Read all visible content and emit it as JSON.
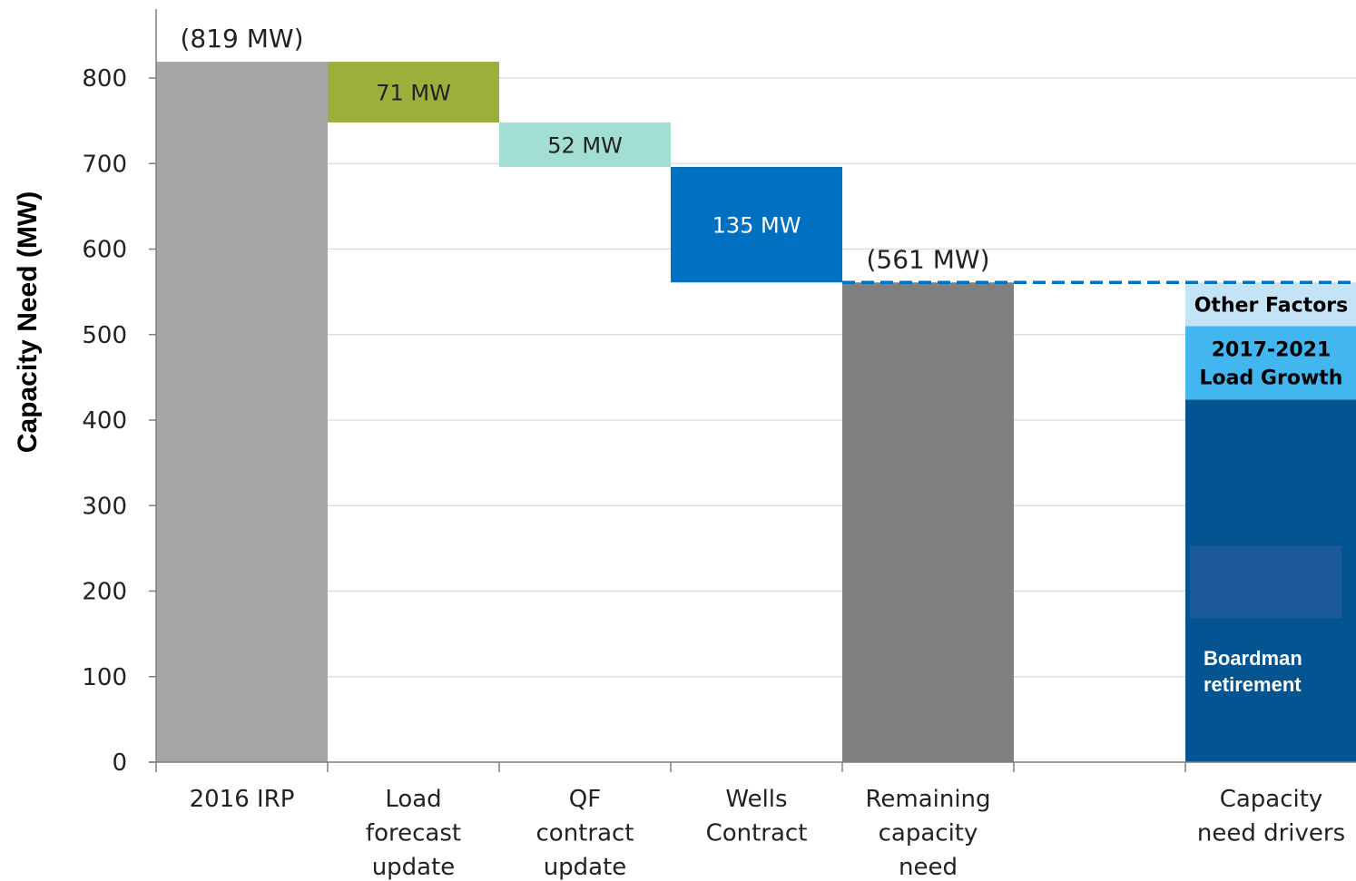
{
  "chart_data": {
    "type": "bar",
    "subtype": "waterfall",
    "title": "",
    "xlabel": "",
    "ylabel": "Capacity Need (MW)",
    "ylim": [
      0,
      850
    ],
    "yticks": [
      0,
      100,
      200,
      300,
      400,
      500,
      600,
      700,
      800
    ],
    "grid": true,
    "categories": [
      "2016 IRP",
      "Load forecast update",
      "QF contract update",
      "Wells Contract",
      "Remaining capacity need",
      "",
      "Capacity need drivers"
    ],
    "category_lines": [
      [
        "2016 IRP"
      ],
      [
        "Load",
        "forecast",
        "update"
      ],
      [
        "QF",
        "contract",
        "update"
      ],
      [
        "Wells",
        "Contract"
      ],
      [
        "Remaining",
        "capacity",
        "need"
      ],
      [],
      [
        "Capacity",
        "need drivers"
      ]
    ],
    "bars": [
      {
        "category_index": 0,
        "base": 0,
        "top": 819,
        "color": "#a6a6a6",
        "label": "(819 MW)",
        "label_position": "above",
        "label_color": "#222222"
      },
      {
        "category_index": 1,
        "base": 748,
        "top": 819,
        "color": "#9caf3b",
        "label": "71 MW",
        "label_position": "inside",
        "label_color": "#222222"
      },
      {
        "category_index": 2,
        "base": 696,
        "top": 748,
        "color": "#a2ded1",
        "label": "52 MW",
        "label_position": "inside",
        "label_color": "#222222"
      },
      {
        "category_index": 3,
        "base": 561,
        "top": 696,
        "color": "#0070c0",
        "label": "135 MW",
        "label_position": "inside",
        "label_color": "#ffffff"
      },
      {
        "category_index": 4,
        "base": 0,
        "top": 561,
        "color": "#7f7f7f",
        "label": "(561 MW)",
        "label_position": "above",
        "label_color": "#222222"
      }
    ],
    "stacked_bar": {
      "category_index": 6,
      "segments": [
        {
          "name": "Boardman retirement",
          "lines": [
            "Boardman",
            "retirement"
          ],
          "base": 0,
          "top": 424,
          "color": "#035490",
          "text_color": "#ffffff"
        },
        {
          "name": "2017-2021 Load Growth",
          "lines": [
            "2017-2021",
            "Load Growth"
          ],
          "base": 424,
          "top": 510,
          "color": "#42b6ef",
          "text_color": "#000000"
        },
        {
          "name": "Other Factors",
          "lines": [
            "Other Factors"
          ],
          "base": 510,
          "top": 561,
          "color": "#c5e3f6",
          "text_color": "#000000"
        }
      ]
    },
    "reference_line": {
      "value": 561,
      "style": "dashed",
      "color": "#0070c0"
    },
    "colors": {
      "grid": "#d9d9d9",
      "axis": "#7f7f7f",
      "text": "#222222"
    }
  }
}
